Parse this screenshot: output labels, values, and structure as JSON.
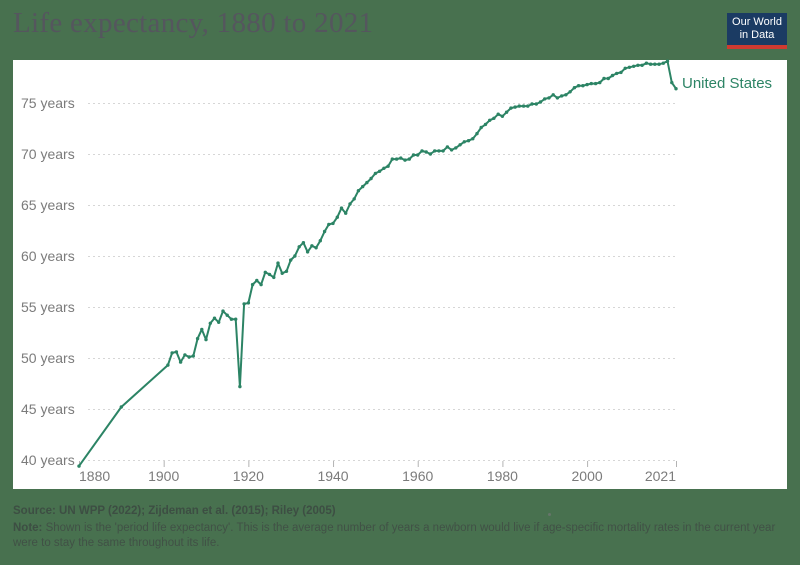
{
  "page": {
    "background_color": "#48714f"
  },
  "header": {
    "title": "Life expectancy, 1880 to 2021",
    "title_color": "#55565e"
  },
  "logo": {
    "line1": "Our World",
    "line2": "in Data",
    "bg_color": "#1b3b63",
    "accent_color": "#cf3a30"
  },
  "chart_data": {
    "type": "line",
    "title": "Life expectancy, 1880 to 2021",
    "xlabel": "",
    "ylabel": "",
    "xlim": [
      1880,
      2021
    ],
    "ylim": [
      39,
      80
    ],
    "grid": "horizontal dashed",
    "legend_position": "end-of-line label",
    "x_ticks": [
      1880,
      1900,
      1920,
      1940,
      1960,
      1980,
      2000,
      2021
    ],
    "x_tick_labels": [
      "1880",
      "1900",
      "1920",
      "1940",
      "1960",
      "1980",
      "2000",
      "2021"
    ],
    "y_ticks": [
      40,
      45,
      50,
      55,
      60,
      65,
      70,
      75
    ],
    "y_tick_labels": [
      "40 years",
      "45 years",
      "50 years",
      "55 years",
      "60 years",
      "65 years",
      "70 years",
      "75 years"
    ],
    "end_label": "United States",
    "series": [
      {
        "name": "United States",
        "color": "#2c8465",
        "points": [
          [
            1880,
            39.4
          ],
          [
            1890,
            45.2
          ],
          [
            1901,
            49.3
          ],
          [
            1902,
            50.5
          ],
          [
            1903,
            50.6
          ],
          [
            1904,
            49.6
          ],
          [
            1905,
            50.3
          ],
          [
            1906,
            50.1
          ],
          [
            1907,
            50.2
          ],
          [
            1908,
            51.9
          ],
          [
            1909,
            52.8
          ],
          [
            1910,
            51.8
          ],
          [
            1911,
            53.4
          ],
          [
            1912,
            53.9
          ],
          [
            1913,
            53.5
          ],
          [
            1914,
            54.6
          ],
          [
            1915,
            54.2
          ],
          [
            1916,
            53.8
          ],
          [
            1917,
            53.8
          ],
          [
            1918,
            47.2
          ],
          [
            1919,
            55.3
          ],
          [
            1920,
            55.4
          ],
          [
            1921,
            57.2
          ],
          [
            1922,
            57.6
          ],
          [
            1923,
            57.2
          ],
          [
            1924,
            58.4
          ],
          [
            1925,
            58.2
          ],
          [
            1926,
            57.9
          ],
          [
            1927,
            59.3
          ],
          [
            1928,
            58.3
          ],
          [
            1929,
            58.5
          ],
          [
            1930,
            59.6
          ],
          [
            1931,
            60.0
          ],
          [
            1932,
            60.9
          ],
          [
            1933,
            61.3
          ],
          [
            1934,
            60.4
          ],
          [
            1935,
            61.0
          ],
          [
            1936,
            60.8
          ],
          [
            1937,
            61.5
          ],
          [
            1938,
            62.4
          ],
          [
            1939,
            63.1
          ],
          [
            1940,
            63.2
          ],
          [
            1941,
            63.8
          ],
          [
            1942,
            64.7
          ],
          [
            1943,
            64.2
          ],
          [
            1944,
            65.1
          ],
          [
            1945,
            65.6
          ],
          [
            1946,
            66.4
          ],
          [
            1947,
            66.8
          ],
          [
            1948,
            67.2
          ],
          [
            1949,
            67.6
          ],
          [
            1950,
            68.1
          ],
          [
            1951,
            68.3
          ],
          [
            1952,
            68.6
          ],
          [
            1953,
            68.8
          ],
          [
            1954,
            69.5
          ],
          [
            1955,
            69.5
          ],
          [
            1956,
            69.6
          ],
          [
            1957,
            69.4
          ],
          [
            1958,
            69.5
          ],
          [
            1959,
            69.9
          ],
          [
            1960,
            69.9
          ],
          [
            1961,
            70.3
          ],
          [
            1962,
            70.2
          ],
          [
            1963,
            70.0
          ],
          [
            1964,
            70.3
          ],
          [
            1965,
            70.3
          ],
          [
            1966,
            70.3
          ],
          [
            1967,
            70.7
          ],
          [
            1968,
            70.4
          ],
          [
            1969,
            70.6
          ],
          [
            1970,
            70.9
          ],
          [
            1971,
            71.2
          ],
          [
            1972,
            71.3
          ],
          [
            1973,
            71.5
          ],
          [
            1974,
            72.0
          ],
          [
            1975,
            72.6
          ],
          [
            1976,
            72.9
          ],
          [
            1977,
            73.3
          ],
          [
            1978,
            73.5
          ],
          [
            1979,
            73.9
          ],
          [
            1980,
            73.7
          ],
          [
            1981,
            74.1
          ],
          [
            1982,
            74.5
          ],
          [
            1983,
            74.6
          ],
          [
            1984,
            74.7
          ],
          [
            1985,
            74.7
          ],
          [
            1986,
            74.7
          ],
          [
            1987,
            74.9
          ],
          [
            1988,
            74.9
          ],
          [
            1989,
            75.1
          ],
          [
            1990,
            75.4
          ],
          [
            1991,
            75.5
          ],
          [
            1992,
            75.8
          ],
          [
            1993,
            75.5
          ],
          [
            1994,
            75.7
          ],
          [
            1995,
            75.8
          ],
          [
            1996,
            76.1
          ],
          [
            1997,
            76.5
          ],
          [
            1998,
            76.7
          ],
          [
            1999,
            76.7
          ],
          [
            2000,
            76.8
          ],
          [
            2001,
            76.9
          ],
          [
            2002,
            76.9
          ],
          [
            2003,
            77.0
          ],
          [
            2004,
            77.4
          ],
          [
            2005,
            77.4
          ],
          [
            2006,
            77.7
          ],
          [
            2007,
            77.9
          ],
          [
            2008,
            78.0
          ],
          [
            2009,
            78.4
          ],
          [
            2010,
            78.5
          ],
          [
            2011,
            78.6
          ],
          [
            2012,
            78.7
          ],
          [
            2013,
            78.7
          ],
          [
            2014,
            78.9
          ],
          [
            2015,
            78.8
          ],
          [
            2016,
            78.8
          ],
          [
            2017,
            78.8
          ],
          [
            2018,
            78.9
          ],
          [
            2019,
            79.1
          ],
          [
            2020,
            77.0
          ],
          [
            2021,
            76.4
          ]
        ]
      }
    ]
  },
  "footer": {
    "source_label": "Source:",
    "source_text": "UN WPP (2022); Zijdeman et al. (2015); Riley (2005)",
    "note_label": "Note:",
    "note_text": "Shown is the 'period life expectancy'. This is the average number of years a newborn would live if age-specific mortality rates in the current year were to stay the same throughout its life."
  }
}
